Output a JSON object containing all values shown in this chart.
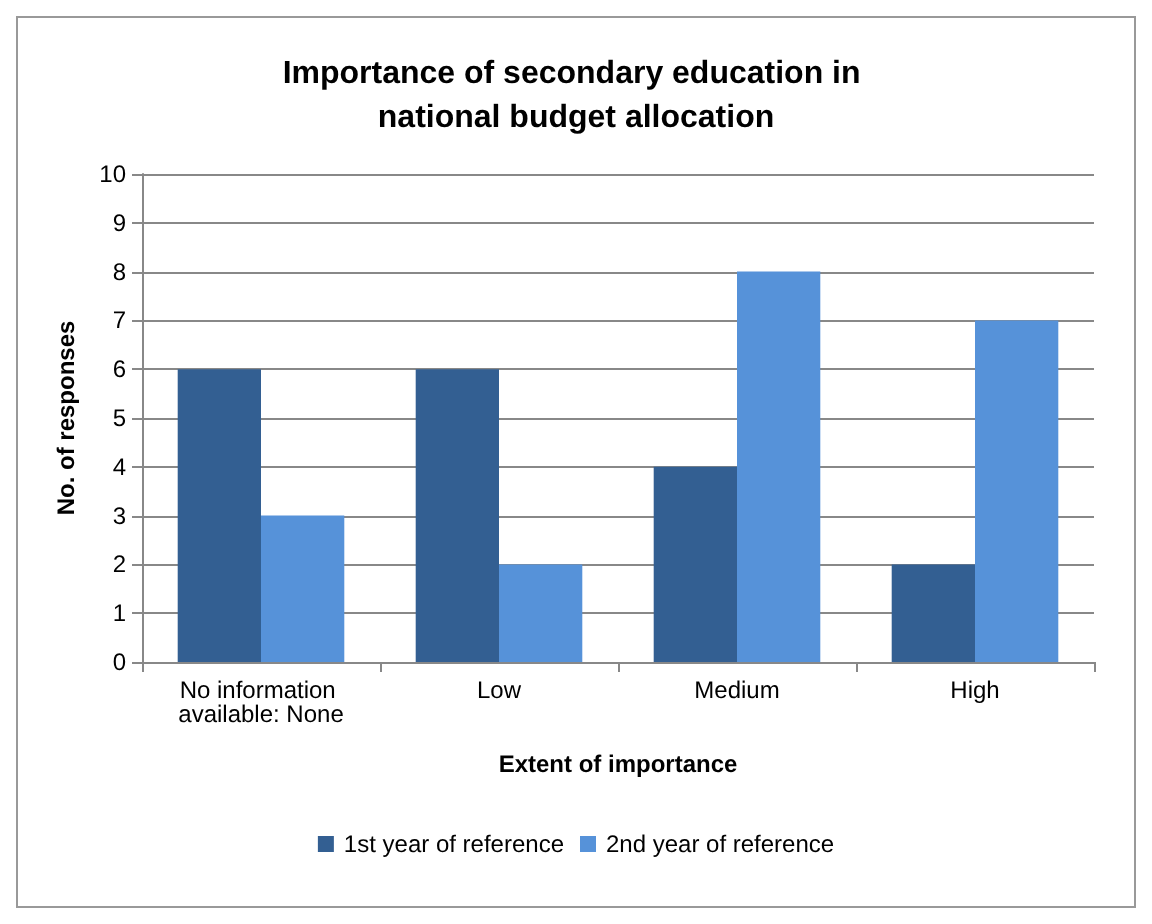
{
  "chart_data": {
    "type": "bar",
    "title": "Importance of secondary education in national budget allocation",
    "xlabel": "Extent of importance",
    "ylabel": "No. of responses",
    "categories": [
      "No information available: None",
      "Low",
      "Medium",
      "High"
    ],
    "series": [
      {
        "name": "1st year of reference",
        "color": "#335f92",
        "values": [
          6,
          6,
          4,
          2
        ]
      },
      {
        "name": "2nd year of reference",
        "color": "#5692d9",
        "values": [
          3,
          2,
          8,
          7
        ]
      }
    ],
    "ylim": [
      0,
      10
    ],
    "yticks": [
      0,
      1,
      2,
      3,
      4,
      5,
      6,
      7,
      8,
      9,
      10
    ],
    "grid": "y",
    "legend": "bottom"
  }
}
